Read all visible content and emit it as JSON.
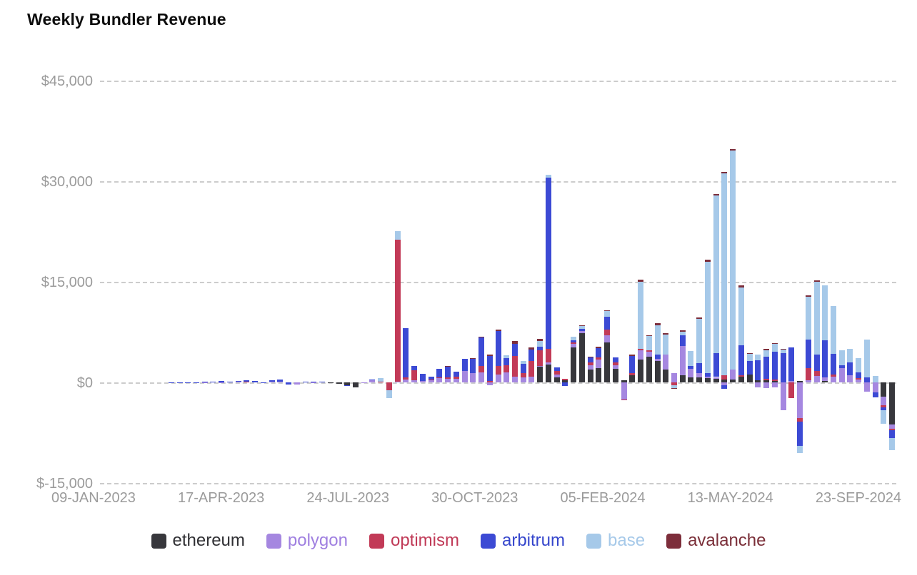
{
  "chart_data": {
    "type": "bar",
    "stacked": true,
    "title": "Weekly Bundler Revenue",
    "xlabel": "",
    "ylabel": "",
    "ylim": [
      -15000,
      45000
    ],
    "grid": "dashed-horizontal",
    "legend_position": "bottom",
    "y_ticks": [
      {
        "label": "$45,000",
        "value": 45000
      },
      {
        "label": "$30,000",
        "value": 30000
      },
      {
        "label": "$15,000",
        "value": 15000
      },
      {
        "label": "$0",
        "value": 0
      },
      {
        "label": "$-15,000",
        "value": -15000
      }
    ],
    "x_ticks": [
      "09-JAN-2023",
      "17-APR-2023",
      "24-JUL-2023",
      "30-OCT-2023",
      "05-FEB-2024",
      "13-MAY-2024",
      "23-SEP-2024"
    ],
    "series": [
      {
        "name": "ethereum",
        "color": "#37373c",
        "text_color": "#2f2f33"
      },
      {
        "name": "polygon",
        "color": "#a587e0",
        "text_color": "#9f7fe0"
      },
      {
        "name": "optimism",
        "color": "#c23a57",
        "text_color": "#c03a57"
      },
      {
        "name": "arbitrum",
        "color": "#3c4ad4",
        "text_color": "#3546cc"
      },
      {
        "name": "base",
        "color": "#a6c9e9",
        "text_color": "#a6c9e9"
      },
      {
        "name": "avalanche",
        "color": "#7d2e3b",
        "text_color": "#7a2e38"
      }
    ],
    "values_unit": "USD per week, order [ethereum, polygon, optimism, arbitrum, base, avalanche]",
    "weeks": [
      {
        "date": "09-JAN-2023",
        "values": [
          0,
          0,
          0,
          0,
          0,
          0
        ]
      },
      {
        "date": "16-JAN-2023",
        "values": [
          0,
          0,
          0,
          0,
          0,
          0
        ]
      },
      {
        "date": "23-JAN-2023",
        "values": [
          0,
          0,
          0,
          0,
          0,
          0
        ]
      },
      {
        "date": "30-JAN-2023",
        "values": [
          0,
          0,
          0,
          0,
          0,
          0
        ]
      },
      {
        "date": "06-FEB-2023",
        "values": [
          0,
          0,
          0,
          0,
          0,
          0
        ]
      },
      {
        "date": "13-FEB-2023",
        "values": [
          0,
          0,
          0,
          0,
          0,
          0
        ]
      },
      {
        "date": "20-FEB-2023",
        "values": [
          0,
          0,
          0,
          0,
          0,
          0
        ]
      },
      {
        "date": "27-FEB-2023",
        "values": [
          0,
          0,
          0,
          0,
          0,
          0
        ]
      },
      {
        "date": "06-MAR-2023",
        "values": [
          0,
          0,
          0,
          20,
          0,
          0
        ]
      },
      {
        "date": "13-MAR-2023",
        "values": [
          0,
          0,
          0,
          30,
          0,
          0
        ]
      },
      {
        "date": "20-MAR-2023",
        "values": [
          0,
          0,
          0,
          50,
          0,
          0
        ]
      },
      {
        "date": "27-MAR-2023",
        "values": [
          0,
          0,
          0,
          30,
          0,
          0
        ]
      },
      {
        "date": "03-APR-2023",
        "values": [
          0,
          30,
          0,
          60,
          0,
          0
        ]
      },
      {
        "date": "10-APR-2023",
        "values": [
          0,
          0,
          0,
          120,
          0,
          0
        ]
      },
      {
        "date": "17-APR-2023",
        "values": [
          0,
          50,
          0,
          150,
          0,
          0
        ]
      },
      {
        "date": "24-APR-2023",
        "values": [
          0,
          0,
          0,
          100,
          0,
          0
        ]
      },
      {
        "date": "01-MAY-2023",
        "values": [
          0,
          60,
          0,
          200,
          0,
          0
        ]
      },
      {
        "date": "08-MAY-2023",
        "values": [
          0,
          80,
          40,
          250,
          0,
          0
        ]
      },
      {
        "date": "15-MAY-2023",
        "values": [
          0,
          0,
          0,
          180,
          0,
          0
        ]
      },
      {
        "date": "22-MAY-2023",
        "values": [
          0,
          0,
          0,
          -150,
          0,
          0
        ]
      },
      {
        "date": "29-MAY-2023",
        "values": [
          0,
          70,
          0,
          220,
          0,
          0
        ]
      },
      {
        "date": "05-JUN-2023",
        "values": [
          0,
          100,
          0,
          300,
          0,
          0
        ]
      },
      {
        "date": "12-JUN-2023",
        "values": [
          0,
          0,
          0,
          -300,
          0,
          0
        ]
      },
      {
        "date": "19-JUN-2023",
        "values": [
          0,
          -350,
          0,
          0,
          0,
          0
        ]
      },
      {
        "date": "26-JUN-2023",
        "values": [
          0,
          0,
          0,
          150,
          0,
          0
        ]
      },
      {
        "date": "03-JUL-2023",
        "values": [
          0,
          50,
          0,
          100,
          0,
          0
        ]
      },
      {
        "date": "10-JUL-2023",
        "values": [
          0,
          0,
          0,
          100,
          0,
          0
        ]
      },
      {
        "date": "17-JUL-2023",
        "values": [
          -100,
          0,
          0,
          0,
          0,
          0
        ]
      },
      {
        "date": "24-JUL-2023",
        "values": [
          -250,
          0,
          0,
          0,
          0,
          0
        ]
      },
      {
        "date": "31-JUL-2023",
        "values": [
          -400,
          0,
          0,
          -50,
          0,
          0
        ]
      },
      {
        "date": "07-AUG-2023",
        "values": [
          -700,
          0,
          0,
          0,
          0,
          0
        ]
      },
      {
        "date": "14-AUG-2023",
        "values": [
          -100,
          50,
          0,
          0,
          0,
          0
        ]
      },
      {
        "date": "21-AUG-2023",
        "values": [
          0,
          350,
          0,
          120,
          0,
          0
        ]
      },
      {
        "date": "28-AUG-2023",
        "values": [
          0,
          0,
          150,
          0,
          450,
          0
        ]
      },
      {
        "date": "04-SEP-2023",
        "values": [
          0,
          0,
          -1200,
          0,
          -1100,
          0
        ]
      },
      {
        "date": "11-SEP-2023",
        "values": [
          0,
          150,
          21100,
          0,
          1300,
          0
        ]
      },
      {
        "date": "18-SEP-2023",
        "values": [
          0,
          400,
          300,
          7400,
          0,
          0
        ]
      },
      {
        "date": "25-SEP-2023",
        "values": [
          0,
          300,
          1500,
          700,
          0,
          0
        ]
      },
      {
        "date": "02-OCT-2023",
        "values": [
          0,
          200,
          0,
          1100,
          0,
          0
        ]
      },
      {
        "date": "09-OCT-2023",
        "values": [
          0,
          300,
          150,
          450,
          0,
          0
        ]
      },
      {
        "date": "16-OCT-2023",
        "values": [
          0,
          600,
          150,
          1250,
          0,
          0
        ]
      },
      {
        "date": "23-OCT-2023",
        "values": [
          0,
          500,
          200,
          1700,
          0,
          100
        ]
      },
      {
        "date": "30-OCT-2023",
        "values": [
          0,
          500,
          400,
          700,
          0,
          0
        ]
      },
      {
        "date": "06-NOV-2023",
        "values": [
          0,
          1700,
          0,
          1800,
          0,
          0
        ]
      },
      {
        "date": "13-NOV-2023",
        "values": [
          0,
          1400,
          0,
          2100,
          0,
          100
        ]
      },
      {
        "date": "20-NOV-2023",
        "values": [
          0,
          1500,
          900,
          4300,
          0,
          100
        ]
      },
      {
        "date": "27-NOV-2023",
        "values": [
          0,
          -400,
          250,
          3700,
          0,
          150
        ]
      },
      {
        "date": "04-DEC-2023",
        "values": [
          0,
          1200,
          1300,
          5200,
          0,
          150
        ]
      },
      {
        "date": "11-DEC-2023",
        "values": [
          0,
          1500,
          1100,
          1000,
          400,
          0
        ]
      },
      {
        "date": "18-DEC-2023",
        "values": [
          0,
          900,
          3000,
          1800,
          0,
          500
        ]
      },
      {
        "date": "25-DEC-2023",
        "values": [
          0,
          700,
          700,
          1400,
          400,
          0
        ]
      },
      {
        "date": "01-JAN-2024",
        "values": [
          0,
          800,
          2400,
          1700,
          0,
          300
        ]
      },
      {
        "date": "08-JAN-2024",
        "values": [
          2300,
          200,
          2300,
          500,
          900,
          300
        ]
      },
      {
        "date": "15-JAN-2024",
        "values": [
          2700,
          300,
          2000,
          25500,
          500,
          0
        ]
      },
      {
        "date": "22-JAN-2024",
        "values": [
          700,
          500,
          500,
          500,
          0,
          0
        ]
      },
      {
        "date": "29-JAN-2024",
        "values": [
          300,
          0,
          200,
          -500,
          0,
          0
        ]
      },
      {
        "date": "05-FEB-2024",
        "values": [
          5200,
          500,
          300,
          300,
          500,
          0
        ]
      },
      {
        "date": "12-FEB-2024",
        "values": [
          7300,
          400,
          0,
          300,
          400,
          100
        ]
      },
      {
        "date": "19-FEB-2024",
        "values": [
          1900,
          700,
          400,
          700,
          0,
          100
        ]
      },
      {
        "date": "26-FEB-2024",
        "values": [
          2100,
          1300,
          300,
          1400,
          0,
          200
        ]
      },
      {
        "date": "04-MAR-2024",
        "values": [
          6000,
          1000,
          900,
          1900,
          800,
          100
        ]
      },
      {
        "date": "11-MAR-2024",
        "values": [
          2000,
          600,
          400,
          700,
          0,
          0
        ]
      },
      {
        "date": "18-MAR-2024",
        "values": [
          300,
          -2500,
          -200,
          0,
          0,
          0
        ]
      },
      {
        "date": "25-MAR-2024",
        "values": [
          1100,
          0,
          300,
          2500,
          0,
          200
        ]
      },
      {
        "date": "01-APR-2024",
        "values": [
          3400,
          1400,
          200,
          0,
          10000,
          300
        ]
      },
      {
        "date": "08-APR-2024",
        "values": [
          3800,
          800,
          200,
          0,
          2100,
          100
        ]
      },
      {
        "date": "15-APR-2024",
        "values": [
          3200,
          300,
          0,
          600,
          4400,
          300
        ]
      },
      {
        "date": "22-APR-2024",
        "values": [
          1900,
          2300,
          0,
          0,
          2900,
          200
        ]
      },
      {
        "date": "29-APR-2024",
        "values": [
          0,
          1400,
          -400,
          0,
          -400,
          -100
        ]
      },
      {
        "date": "06-MAY-2024",
        "values": [
          1100,
          4300,
          0,
          1600,
          600,
          200
        ]
      },
      {
        "date": "13-MAY-2024",
        "values": [
          700,
          1300,
          0,
          500,
          2200,
          0
        ]
      },
      {
        "date": "20-MAY-2024",
        "values": [
          700,
          700,
          0,
          1500,
          6600,
          200
        ]
      },
      {
        "date": "27-MAY-2024",
        "values": [
          600,
          300,
          0,
          500,
          16600,
          300
        ]
      },
      {
        "date": "03-JUN-2024",
        "values": [
          500,
          300,
          0,
          3600,
          23500,
          200
        ]
      },
      {
        "date": "10-JUN-2024",
        "values": [
          400,
          -400,
          700,
          -600,
          30100,
          200
        ]
      },
      {
        "date": "17-JUN-2024",
        "values": [
          400,
          1500,
          0,
          0,
          32700,
          200
        ]
      },
      {
        "date": "24-JUN-2024",
        "values": [
          800,
          0,
          300,
          4400,
          8700,
          300
        ]
      },
      {
        "date": "01-JUL-2024",
        "values": [
          1200,
          0,
          0,
          2000,
          1100,
          100
        ]
      },
      {
        "date": "08-JUL-2024",
        "values": [
          300,
          -700,
          0,
          3000,
          900,
          0
        ]
      },
      {
        "date": "15-JUL-2024",
        "values": [
          300,
          -800,
          200,
          3300,
          1000,
          200
        ]
      },
      {
        "date": "22-JUL-2024",
        "values": [
          200,
          -700,
          200,
          4200,
          1100,
          100
        ]
      },
      {
        "date": "29-JUL-2024",
        "values": [
          0,
          -4100,
          0,
          4400,
          450,
          150
        ]
      },
      {
        "date": "05-AUG-2024",
        "values": [
          0,
          200,
          -2300,
          5000,
          0,
          0
        ]
      },
      {
        "date": "12-AUG-2024",
        "values": [
          200,
          -5300,
          -500,
          -3700,
          -1000,
          0
        ]
      },
      {
        "date": "19-AUG-2024",
        "values": [
          0,
          300,
          1800,
          4300,
          6400,
          200
        ]
      },
      {
        "date": "26-AUG-2024",
        "values": [
          0,
          1000,
          700,
          2400,
          10900,
          200
        ]
      },
      {
        "date": "02-SEP-2024",
        "values": [
          200,
          500,
          0,
          5600,
          8200,
          0
        ]
      },
      {
        "date": "09-SEP-2024",
        "values": [
          0,
          900,
          300,
          3100,
          7100,
          0
        ]
      },
      {
        "date": "16-SEP-2024",
        "values": [
          0,
          2100,
          0,
          500,
          2200,
          0
        ]
      },
      {
        "date": "23-SEP-2024",
        "values": [
          0,
          1100,
          0,
          1900,
          2000,
          0
        ]
      },
      {
        "date": "30-SEP-2024",
        "values": [
          0,
          400,
          200,
          900,
          2100,
          0
        ]
      },
      {
        "date": "07-OCT-2024",
        "values": [
          0,
          -1400,
          0,
          700,
          5700,
          0
        ]
      },
      {
        "date": "14-OCT-2024",
        "values": [
          0,
          -1500,
          0,
          -700,
          1000,
          0
        ]
      },
      {
        "date": "21-OCT-2024",
        "values": [
          -2100,
          -1300,
          -300,
          -500,
          -2000,
          0
        ]
      },
      {
        "date": "28-OCT-2024",
        "values": [
          -6300,
          -600,
          -200,
          -1200,
          -1800,
          0
        ]
      }
    ]
  }
}
